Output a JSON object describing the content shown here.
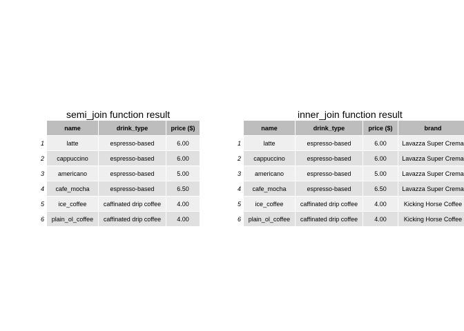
{
  "tables": [
    {
      "title": "semi_join function result",
      "columns": [
        "name",
        "drink_type",
        "price ($)"
      ],
      "rows": [
        {
          "num": "1",
          "cells": [
            "latte",
            "espresso-based",
            "6.00"
          ]
        },
        {
          "num": "2",
          "cells": [
            "cappuccino",
            "espresso-based",
            "6.00"
          ]
        },
        {
          "num": "3",
          "cells": [
            "americano",
            "espresso-based",
            "5.00"
          ]
        },
        {
          "num": "4",
          "cells": [
            "cafe_mocha",
            "espresso-based",
            "6.50"
          ]
        },
        {
          "num": "5",
          "cells": [
            "ice_coffee",
            "caffinated drip coffee",
            "4.00"
          ]
        },
        {
          "num": "6",
          "cells": [
            "plain_ol_coffee",
            "caffinated drip coffee",
            "4.00"
          ]
        }
      ]
    },
    {
      "title": "inner_join function result",
      "columns": [
        "name",
        "drink_type",
        "price ($)",
        "brand"
      ],
      "rows": [
        {
          "num": "1",
          "cells": [
            "latte",
            "espresso-based",
            "6.00",
            "Lavazza Super Crema"
          ]
        },
        {
          "num": "2",
          "cells": [
            "cappuccino",
            "espresso-based",
            "6.00",
            "Lavazza Super Crema"
          ]
        },
        {
          "num": "3",
          "cells": [
            "americano",
            "espresso-based",
            "5.00",
            "Lavazza Super Crema"
          ]
        },
        {
          "num": "4",
          "cells": [
            "cafe_mocha",
            "espresso-based",
            "6.50",
            "Lavazza Super Crema"
          ]
        },
        {
          "num": "5",
          "cells": [
            "ice_coffee",
            "caffinated drip coffee",
            "4.00",
            "Kicking Horse Coffee"
          ]
        },
        {
          "num": "6",
          "cells": [
            "plain_ol_coffee",
            "caffinated drip coffee",
            "4.00",
            "Kicking Horse Coffee"
          ]
        }
      ]
    }
  ],
  "colors": {
    "header_bg": "#bdbdbd",
    "row_odd_bg": "#efefef",
    "row_even_bg": "#e0e0e0"
  }
}
